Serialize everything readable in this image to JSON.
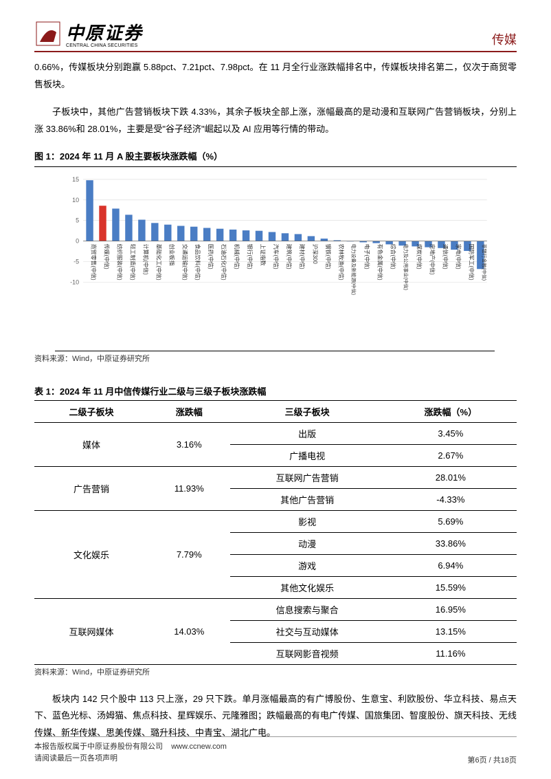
{
  "header": {
    "logo_cn": "中原证券",
    "logo_en": "CENTRAL CHINA SECURITIES",
    "category": "传媒"
  },
  "paragraphs": {
    "p1": "0.66%，传媒板块分别跑赢 5.88pct、7.21pct、7.98pct。在 11 月全行业涨跌幅排名中，传媒板块排名第二，仅次于商贸零售板块。",
    "p2": "子板块中，其他广告营销板块下跌 4.33%，其余子板块全部上涨，涨幅最高的是动漫和互联网广告营销板块，分别上涨 33.86%和 28.01%，主要是受\"谷子经济\"崛起以及 AI 应用等行情的带动。",
    "p3": "板块内 142 只个股中 113 只上涨，29 只下跌。单月涨幅最高的有广博股份、生意宝、利欧股份、华立科技、易点天下、蓝色光标、汤姆猫、焦点科技、星辉娱乐、元隆雅图；跌幅最高的有电广传媒、国旅集团、智度股份、旗天科技、无线传媒、新华传媒、思美传媒、璐升科技、中青宝、湖北广电。"
  },
  "figure1": {
    "title": "图 1：2024 年 11 月 A 股主要板块涨跌幅（%）",
    "source": "资料来源：Wind，中原证券研究所",
    "type": "bar",
    "ylim": [
      -10,
      15
    ],
    "yticks": [
      -10,
      -5,
      0,
      5,
      10,
      15
    ],
    "grid_color": "#d9d9d9",
    "bar_color_default": "#4a7dc4",
    "bar_color_highlight": "#d9342b",
    "highlight_index": 1,
    "bar_width": 0.55,
    "categories": [
      "商贸零售(中信)",
      "传媒(中信)",
      "纺织服装(中信)",
      "轻工制造(中信)",
      "计算机(中信)",
      "基础化工(中信)",
      "创业板指",
      "交通运输(中信)",
      "食品饮料(中信)",
      "医药(中信)",
      "石油石化(中信)",
      "机械(中信)",
      "银行(中信)",
      "上证指数",
      "汽车(中信)",
      "建筑(中信)",
      "建材(中信)",
      "沪深300",
      "钢铁(中信)",
      "农林牧渔(中信)",
      "电力设备及新能源(中信)",
      "电子(中信)",
      "有色金属(中信)",
      "综合(中信)",
      "电力及公用事业(中信)",
      "煤炭(中信)",
      "房地产(中信)",
      "通信(中信)",
      "家电(中信)",
      "国防军工(中信)",
      "非银行金融(中信)"
    ],
    "values": [
      14.8,
      8.6,
      7.9,
      6.4,
      5.2,
      4.4,
      4.0,
      3.7,
      3.5,
      3.2,
      3.0,
      2.8,
      2.6,
      2.5,
      2.2,
      1.9,
      1.7,
      1.2,
      0.6,
      0.2,
      -0.1,
      -0.3,
      -0.5,
      -0.8,
      -1.1,
      -1.3,
      -1.5,
      -1.7,
      -2.1,
      -2.4,
      -6.8
    ]
  },
  "table1": {
    "title": "表 1：2024 年 11 月中信传媒行业二级与三级子板块涨跌幅",
    "source": "资料来源：Wind，中原证券研究所",
    "columns": [
      "二级子板块",
      "涨跌幅",
      "三级子板块",
      "涨跌幅（%）"
    ],
    "groups": [
      {
        "l2": "媒体",
        "chg": "3.16%",
        "rows": [
          [
            "出版",
            "3.45%"
          ],
          [
            "广播电视",
            "2.67%"
          ]
        ]
      },
      {
        "l2": "广告营销",
        "chg": "11.93%",
        "rows": [
          [
            "互联网广告营销",
            "28.01%"
          ],
          [
            "其他广告营销",
            "-4.33%"
          ]
        ]
      },
      {
        "l2": "文化娱乐",
        "chg": "7.79%",
        "rows": [
          [
            "影视",
            "5.69%"
          ],
          [
            "动漫",
            "33.86%"
          ],
          [
            "游戏",
            "6.94%"
          ],
          [
            "其他文化娱乐",
            "15.59%"
          ]
        ]
      },
      {
        "l2": "互联网媒体",
        "chg": "14.03%",
        "rows": [
          [
            "信息搜索与聚合",
            "16.95%"
          ],
          [
            "社交与互动媒体",
            "13.15%"
          ],
          [
            "互联网影音视频",
            "11.16%"
          ]
        ]
      }
    ]
  },
  "footer": {
    "line1": "本报告版权属于中原证券股份有限公司",
    "url": "www.ccnew.com",
    "line2": "请阅读最后一页各项声明",
    "page": "第6页 / 共18页"
  }
}
